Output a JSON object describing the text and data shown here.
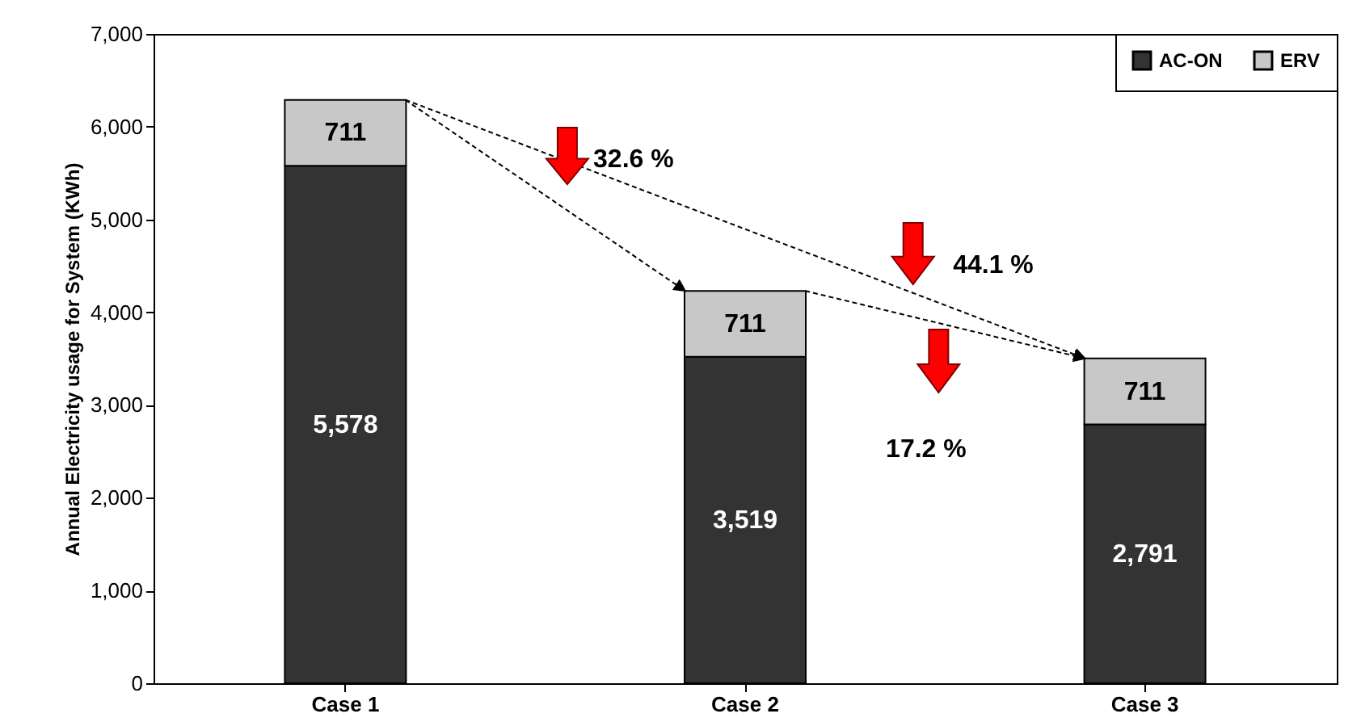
{
  "chart_data": {
    "type": "bar",
    "stacked": true,
    "categories": [
      "Case 1",
      "Case 2",
      "Case 3"
    ],
    "series": [
      {
        "name": "AC-ON",
        "color": "#333333",
        "values": [
          5578,
          3519,
          2791
        ],
        "value_labels": [
          "5,578",
          "3,519",
          "2,791"
        ]
      },
      {
        "name": "ERV",
        "color": "#c8c8c8",
        "values": [
          711,
          711,
          711
        ],
        "value_labels": [
          "711",
          "711",
          "711"
        ]
      }
    ],
    "ylabel": "Annual Electricity usage for System (KWh)",
    "ylim": [
      0,
      7000
    ],
    "yticks": [
      {
        "value": 0,
        "label": "0"
      },
      {
        "value": 1000,
        "label": "1,000"
      },
      {
        "value": 2000,
        "label": "2,000"
      },
      {
        "value": 3000,
        "label": "3,000"
      },
      {
        "value": 4000,
        "label": "4,000"
      },
      {
        "value": 5000,
        "label": "5,000"
      },
      {
        "value": 6000,
        "label": "6,000"
      },
      {
        "value": 7000,
        "label": "7,000"
      }
    ],
    "legend": "top right",
    "grid": false,
    "annotations": [
      "32.6 %",
      "44.1 %",
      "17.2 %"
    ]
  }
}
